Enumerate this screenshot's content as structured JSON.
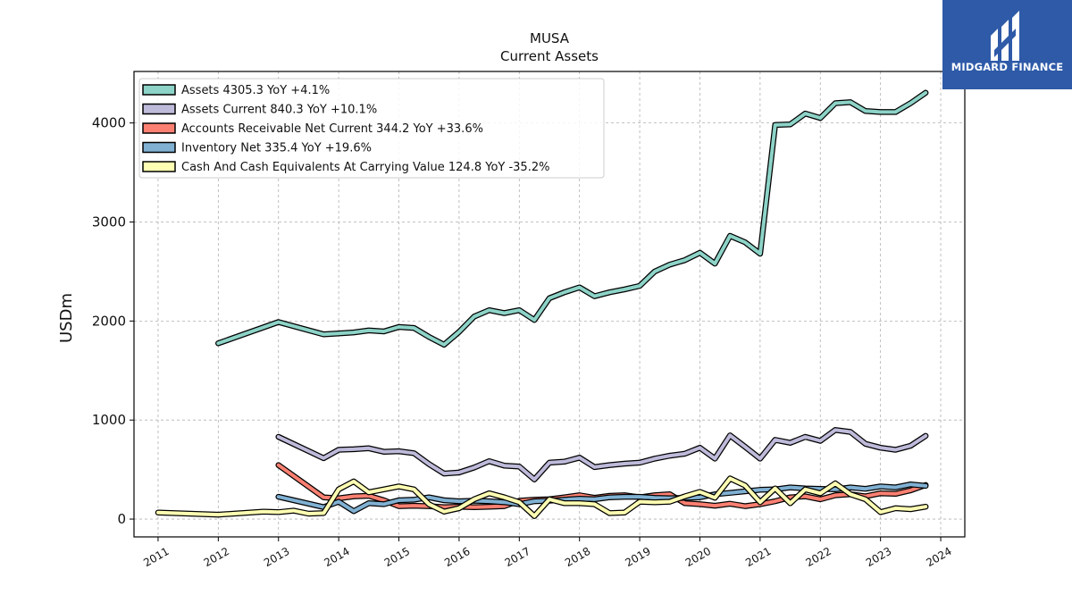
{
  "brand": {
    "name": "MIDGARD FINANCE"
  },
  "chart_data": {
    "type": "line",
    "title": "MUSA",
    "subtitle": "Current  Assets",
    "ylabel": "USDm",
    "xlabel": "",
    "xlim": [
      2010.6,
      2024.4
    ],
    "ylim": [
      -180,
      4520
    ],
    "x_ticks": [
      "2011",
      "2012",
      "2013",
      "2014",
      "2015",
      "2016",
      "2017",
      "2018",
      "2019",
      "2020",
      "2021",
      "2022",
      "2023",
      "2024"
    ],
    "y_ticks": [
      "0",
      "1000",
      "2000",
      "3000",
      "4000"
    ],
    "grid": true,
    "legend_position": "top-left",
    "series": [
      {
        "name": "Assets  4305.3 YoY +4.1%",
        "color": "#8dd3c7",
        "x": [
          2012.0,
          2013.0,
          2013.75,
          2014.0,
          2014.25,
          2014.5,
          2014.75,
          2015.0,
          2015.25,
          2015.5,
          2015.75,
          2016.0,
          2016.25,
          2016.5,
          2016.75,
          2017.0,
          2017.25,
          2017.5,
          2017.75,
          2018.0,
          2018.25,
          2018.5,
          2018.75,
          2019.0,
          2019.25,
          2019.5,
          2019.75,
          2020.0,
          2020.25,
          2020.5,
          2020.75,
          2021.0,
          2021.25,
          2021.5,
          2021.75,
          2022.0,
          2022.25,
          2022.5,
          2022.75,
          2023.0,
          2023.25,
          2023.5,
          2023.75
        ],
        "values": [
          1775,
          1990,
          1865,
          1875,
          1885,
          1905,
          1895,
          1940,
          1930,
          1840,
          1760,
          1890,
          2045,
          2110,
          2080,
          2110,
          2010,
          2230,
          2290,
          2340,
          2250,
          2290,
          2320,
          2355,
          2500,
          2570,
          2615,
          2690,
          2580,
          2860,
          2795,
          2680,
          3980,
          3985,
          4095,
          4050,
          4200,
          4210,
          4120,
          4110,
          4110,
          4200,
          4305
        ]
      },
      {
        "name": "Assets Current  840.3 YoY +10.1%",
        "color": "#bebada",
        "x": [
          2013.0,
          2013.75,
          2014.0,
          2014.25,
          2014.5,
          2014.75,
          2015.0,
          2015.25,
          2015.5,
          2015.75,
          2016.0,
          2016.25,
          2016.5,
          2016.75,
          2017.0,
          2017.25,
          2017.5,
          2017.75,
          2018.0,
          2018.25,
          2018.5,
          2018.75,
          2019.0,
          2019.25,
          2019.5,
          2019.75,
          2020.0,
          2020.25,
          2020.5,
          2020.75,
          2021.0,
          2021.25,
          2021.5,
          2021.75,
          2022.0,
          2022.25,
          2022.5,
          2022.75,
          2023.0,
          2023.25,
          2023.5,
          2023.75
        ],
        "values": [
          830,
          615,
          700,
          705,
          715,
          680,
          685,
          665,
          555,
          460,
          470,
          520,
          585,
          540,
          530,
          400,
          570,
          580,
          620,
          525,
          545,
          560,
          570,
          610,
          640,
          660,
          720,
          610,
          845,
          730,
          610,
          800,
          770,
          830,
          790,
          900,
          880,
          760,
          720,
          700,
          740,
          840
        ]
      },
      {
        "name": "Accounts Receivable Net Current  344.2 YoY +33.6%",
        "color": "#fb8072",
        "x": [
          2013.0,
          2013.75,
          2014.0,
          2014.25,
          2014.5,
          2014.75,
          2015.0,
          2015.25,
          2015.5,
          2015.75,
          2016.0,
          2016.25,
          2016.5,
          2016.75,
          2017.0,
          2017.25,
          2017.5,
          2017.75,
          2018.0,
          2018.25,
          2018.5,
          2018.75,
          2019.0,
          2019.25,
          2019.5,
          2019.75,
          2020.0,
          2020.25,
          2020.5,
          2020.75,
          2021.0,
          2021.25,
          2021.5,
          2021.75,
          2022.0,
          2022.25,
          2022.5,
          2022.75,
          2023.0,
          2023.25,
          2023.5,
          2023.75
        ],
        "values": [
          545,
          220,
          210,
          230,
          235,
          190,
          130,
          135,
          130,
          120,
          125,
          120,
          125,
          130,
          185,
          195,
          200,
          220,
          240,
          215,
          235,
          240,
          220,
          240,
          250,
          160,
          150,
          135,
          155,
          130,
          150,
          180,
          220,
          230,
          200,
          240,
          250,
          230,
          260,
          255,
          290,
          344
        ]
      },
      {
        "name": "Inventory Net  335.4 YoY +19.6%",
        "color": "#80b1d3",
        "x": [
          2013.0,
          2013.75,
          2014.0,
          2014.25,
          2014.5,
          2014.75,
          2015.0,
          2015.25,
          2015.5,
          2015.75,
          2016.0,
          2016.25,
          2016.5,
          2016.75,
          2017.0,
          2017.25,
          2017.5,
          2017.75,
          2018.0,
          2018.25,
          2018.5,
          2018.75,
          2019.0,
          2019.25,
          2019.5,
          2019.75,
          2020.0,
          2020.25,
          2020.5,
          2020.75,
          2021.0,
          2021.25,
          2021.5,
          2021.75,
          2022.0,
          2022.25,
          2022.5,
          2022.75,
          2023.0,
          2023.25,
          2023.5,
          2023.75
        ],
        "values": [
          225,
          120,
          175,
          80,
          160,
          150,
          190,
          195,
          220,
          190,
          180,
          185,
          180,
          170,
          150,
          180,
          185,
          195,
          205,
          200,
          220,
          225,
          225,
          215,
          210,
          215,
          220,
          250,
          265,
          280,
          295,
          300,
          320,
          310,
          305,
          300,
          320,
          305,
          330,
          320,
          350,
          335
        ]
      },
      {
        "name": "Cash And Cash Equivalents At Carrying Value  124.8 YoY -35.2%",
        "color": "#ffffb3",
        "x": [
          2011.0,
          2012.0,
          2012.75,
          2013.0,
          2013.25,
          2013.5,
          2013.75,
          2014.0,
          2014.25,
          2014.5,
          2014.75,
          2015.0,
          2015.25,
          2015.5,
          2015.75,
          2016.0,
          2016.25,
          2016.5,
          2016.75,
          2017.0,
          2017.25,
          2017.5,
          2017.75,
          2018.0,
          2018.25,
          2018.5,
          2018.75,
          2019.0,
          2019.25,
          2019.5,
          2019.75,
          2020.0,
          2020.25,
          2020.5,
          2020.75,
          2021.0,
          2021.25,
          2021.5,
          2021.75,
          2022.0,
          2022.25,
          2022.5,
          2022.75,
          2023.0,
          2023.25,
          2023.5,
          2023.75
        ],
        "values": [
          65,
          45,
          75,
          70,
          85,
          55,
          60,
          300,
          380,
          270,
          300,
          330,
          300,
          150,
          75,
          110,
          200,
          260,
          220,
          170,
          30,
          200,
          160,
          160,
          150,
          60,
          65,
          175,
          170,
          175,
          230,
          275,
          215,
          410,
          340,
          170,
          310,
          160,
          300,
          260,
          360,
          250,
          200,
          70,
          110,
          100,
          125
        ]
      }
    ]
  }
}
